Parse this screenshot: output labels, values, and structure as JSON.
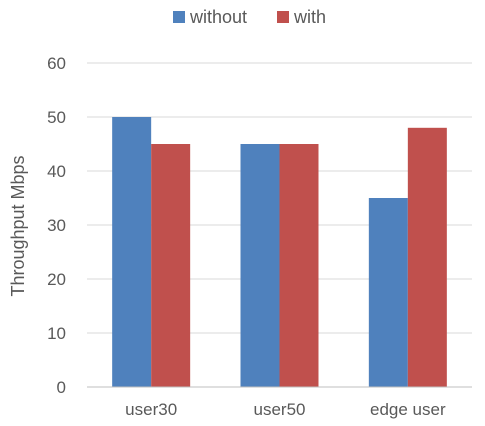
{
  "chart_data": {
    "type": "bar",
    "title": "",
    "xlabel": "",
    "ylabel": "Throughput Mbps",
    "categories": [
      "user30",
      "user50",
      "edge user"
    ],
    "series": [
      {
        "name": "without",
        "color": "#4F81BD",
        "values": [
          50,
          45,
          35
        ]
      },
      {
        "name": "with",
        "color": "#C0504D",
        "values": [
          45,
          45,
          48
        ]
      }
    ],
    "ylim": [
      0,
      60
    ],
    "yticks": [
      0,
      10,
      20,
      30,
      40,
      50,
      60
    ],
    "grid": true,
    "legend": "top-center",
    "gridColor": "#D9D9D9",
    "axisColor": "#BFBFBF"
  }
}
